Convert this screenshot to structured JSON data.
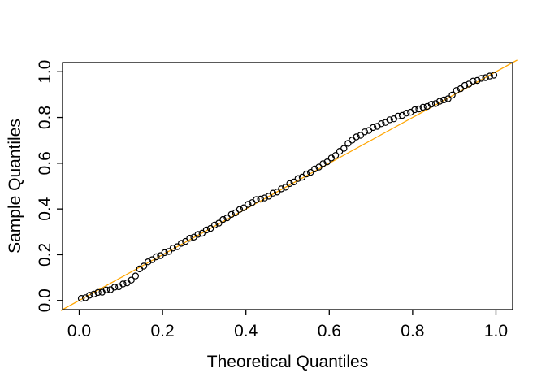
{
  "figure": {
    "background_color": "#FFFFFF",
    "xlabel": "Theoretical Quantiles",
    "ylabel": "Sample Quantiles",
    "x_tick_labels": [
      "0.0",
      "0.2",
      "0.4",
      "0.6",
      "0.8",
      "1.0"
    ],
    "y_tick_labels": [
      "0.0",
      "0.2",
      "0.4",
      "0.6",
      "0.8",
      "1.0"
    ],
    "box_color": "#000000",
    "tick_color": "#000000",
    "point_stroke_color": "#000000",
    "reference_line_color": "#FFA500"
  },
  "chart_data": {
    "type": "scatter",
    "title": "",
    "xlabel": "Theoretical Quantiles",
    "ylabel": "Sample Quantiles",
    "xlim": [
      -0.04,
      1.04
    ],
    "ylim": [
      -0.04,
      1.04
    ],
    "x_tick_values": [
      0.0,
      0.2,
      0.4,
      0.6,
      0.8,
      1.0
    ],
    "y_tick_values": [
      0.0,
      0.2,
      0.4,
      0.6,
      0.8,
      1.0
    ],
    "grid": false,
    "legend": "none",
    "series": [
      {
        "name": "sample-quantile-points",
        "type": "scatter",
        "marker": "open-circle",
        "marker_color": "#000000",
        "x": [
          0.005,
          0.015,
          0.025,
          0.035,
          0.045,
          0.055,
          0.065,
          0.075,
          0.085,
          0.095,
          0.105,
          0.115,
          0.125,
          0.135,
          0.145,
          0.155,
          0.165,
          0.175,
          0.185,
          0.195,
          0.205,
          0.215,
          0.225,
          0.235,
          0.245,
          0.255,
          0.265,
          0.275,
          0.285,
          0.295,
          0.305,
          0.315,
          0.325,
          0.335,
          0.345,
          0.355,
          0.365,
          0.375,
          0.385,
          0.395,
          0.405,
          0.415,
          0.425,
          0.435,
          0.445,
          0.455,
          0.465,
          0.475,
          0.485,
          0.495,
          0.505,
          0.515,
          0.525,
          0.535,
          0.545,
          0.555,
          0.565,
          0.575,
          0.585,
          0.595,
          0.605,
          0.615,
          0.625,
          0.635,
          0.645,
          0.655,
          0.665,
          0.675,
          0.685,
          0.695,
          0.705,
          0.715,
          0.725,
          0.735,
          0.745,
          0.755,
          0.765,
          0.775,
          0.785,
          0.795,
          0.805,
          0.815,
          0.825,
          0.835,
          0.845,
          0.855,
          0.865,
          0.875,
          0.885,
          0.895,
          0.905,
          0.915,
          0.925,
          0.935,
          0.945,
          0.955,
          0.965,
          0.975,
          0.985,
          0.995
        ],
        "y": [
          0.009,
          0.012,
          0.023,
          0.028,
          0.035,
          0.036,
          0.046,
          0.047,
          0.058,
          0.06,
          0.072,
          0.077,
          0.089,
          0.107,
          0.138,
          0.15,
          0.169,
          0.178,
          0.191,
          0.196,
          0.209,
          0.214,
          0.229,
          0.235,
          0.25,
          0.258,
          0.272,
          0.277,
          0.289,
          0.294,
          0.308,
          0.315,
          0.33,
          0.338,
          0.354,
          0.361,
          0.376,
          0.383,
          0.398,
          0.405,
          0.42,
          0.428,
          0.441,
          0.443,
          0.448,
          0.456,
          0.469,
          0.474,
          0.488,
          0.495,
          0.511,
          0.518,
          0.533,
          0.539,
          0.553,
          0.56,
          0.575,
          0.583,
          0.598,
          0.606,
          0.623,
          0.634,
          0.652,
          0.665,
          0.687,
          0.701,
          0.715,
          0.722,
          0.737,
          0.743,
          0.756,
          0.761,
          0.773,
          0.778,
          0.79,
          0.794,
          0.806,
          0.809,
          0.819,
          0.823,
          0.834,
          0.837,
          0.845,
          0.848,
          0.858,
          0.861,
          0.871,
          0.877,
          0.882,
          0.898,
          0.918,
          0.926,
          0.94,
          0.946,
          0.959,
          0.962,
          0.971,
          0.974,
          0.981,
          0.985
        ]
      },
      {
        "name": "reference-line",
        "type": "line",
        "color": "#FFA500",
        "x": [
          -0.044,
          1.051
        ],
        "y": [
          -0.044,
          1.051
        ]
      }
    ]
  }
}
